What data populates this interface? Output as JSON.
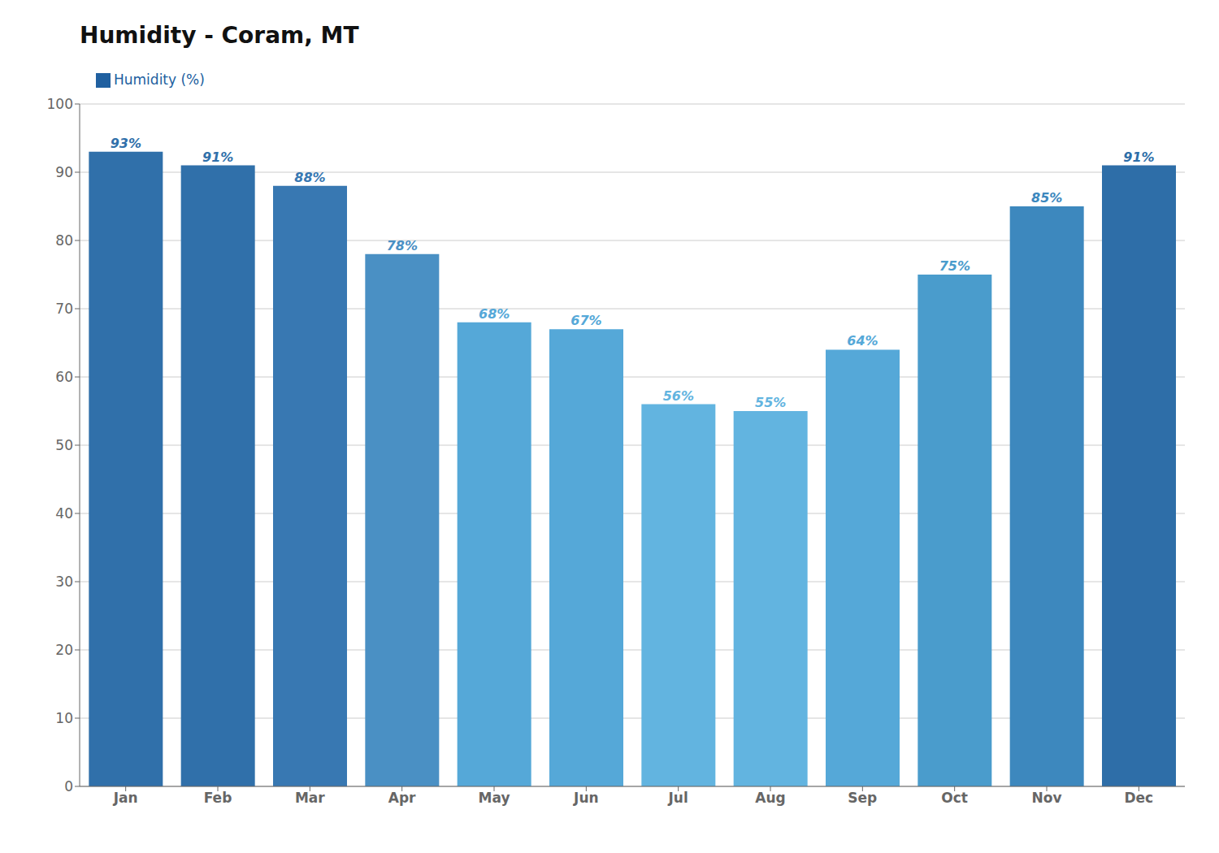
{
  "chart_data": {
    "type": "bar",
    "title": "Humidity - Coram, MT",
    "categories": [
      "Jan",
      "Feb",
      "Mar",
      "Apr",
      "May",
      "Jun",
      "Jul",
      "Aug",
      "Sep",
      "Oct",
      "Nov",
      "Dec"
    ],
    "series": [
      {
        "name": "Humidity (%)",
        "color": "#2060A0",
        "colors": [
          "#3070AA",
          "#3070AA",
          "#3878B2",
          "#4A90C4",
          "#55A8D8",
          "#55A8D8",
          "#62B4E0",
          "#62B4E0",
          "#55A8D8",
          "#4A9CCC",
          "#3D88BE",
          "#2E6EA8"
        ],
        "values": [
          93,
          91,
          88,
          78,
          68,
          67,
          56,
          55,
          64,
          75,
          85,
          91
        ],
        "value_labels": [
          "93%",
          "91%",
          "88%",
          "78%",
          "68%",
          "67%",
          "56%",
          "55%",
          "64%",
          "75%",
          "85%",
          "91%"
        ]
      }
    ],
    "ylim": [
      0,
      100
    ],
    "yticks": [
      0,
      10,
      20,
      30,
      40,
      50,
      60,
      70,
      80,
      90,
      100
    ],
    "grid": true,
    "data_labels": true,
    "legend": "upper left"
  }
}
